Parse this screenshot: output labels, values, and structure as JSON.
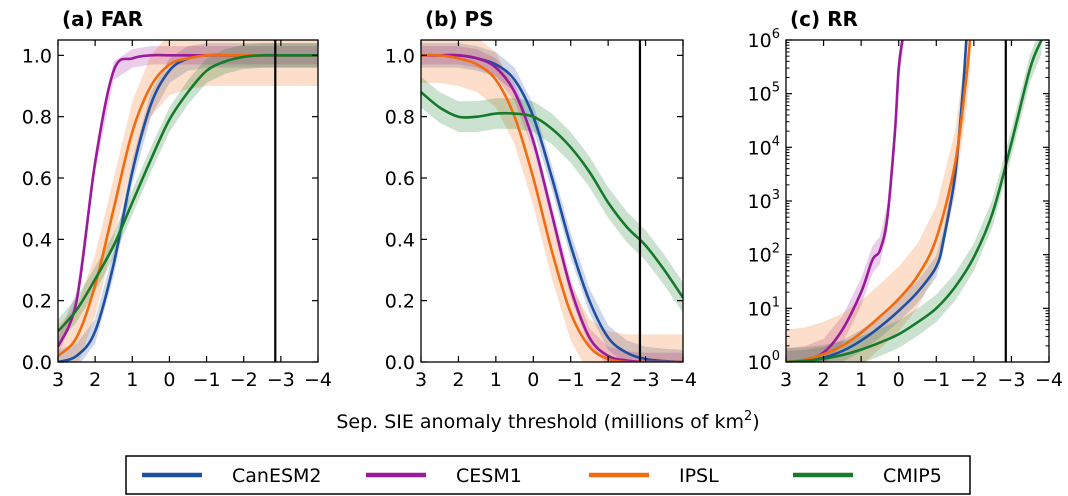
{
  "chart_data": [
    {
      "panel": "a",
      "type": "line",
      "title": "(a) FAR",
      "yscale": "linear",
      "xlim": [
        3,
        -4
      ],
      "ylim": [
        0,
        1.05
      ],
      "xticks": [
        3,
        2,
        1,
        0,
        -1,
        -2,
        -3,
        -4
      ],
      "xtick_labels": [
        "3",
        "2",
        "1",
        "0",
        "−1",
        "−2",
        "−3",
        "−4"
      ],
      "yticks": [
        0,
        0.2,
        0.4,
        0.6,
        0.8,
        1.0
      ],
      "ytick_labels": [
        "0.0",
        "0.2",
        "0.4",
        "0.6",
        "0.8",
        "1.0"
      ],
      "observed_line_x": -2.85,
      "x": [
        3.0,
        2.5,
        2.0,
        1.5,
        1.0,
        0.5,
        0.0,
        -0.5,
        -1.0,
        -1.5,
        -2.0,
        -2.5,
        -3.0,
        -3.5,
        -4.0
      ],
      "series": [
        {
          "name": "CanESM2",
          "color": "#1f4fa0",
          "values": [
            0.0,
            0.02,
            0.1,
            0.32,
            0.62,
            0.84,
            0.95,
            0.99,
            1.0,
            1.0,
            1.0,
            1.0,
            1.0,
            1.0,
            1.0
          ],
          "band": 0.04
        },
        {
          "name": "CESM1",
          "color": "#9b1a9b",
          "values": [
            0.05,
            0.2,
            0.65,
            0.95,
            0.99,
            1.0,
            1.0,
            1.0,
            1.0,
            1.0,
            1.0,
            1.0,
            1.0,
            1.0,
            1.0
          ],
          "band": 0.03
        },
        {
          "name": "IPSL",
          "color": "#f26b0f",
          "values": [
            0.02,
            0.08,
            0.25,
            0.5,
            0.75,
            0.9,
            0.97,
            0.99,
            1.0,
            1.0,
            1.0,
            1.0,
            1.0,
            1.0,
            1.0
          ],
          "band": 0.1
        },
        {
          "name": "CMIP5",
          "color": "#157a2a",
          "values": [
            0.1,
            0.17,
            0.27,
            0.38,
            0.52,
            0.66,
            0.79,
            0.88,
            0.95,
            0.98,
            0.995,
            1.0,
            1.0,
            1.0,
            1.0
          ],
          "band": 0.04
        }
      ]
    },
    {
      "panel": "b",
      "type": "line",
      "title": "(b) PS",
      "yscale": "linear",
      "xlim": [
        3,
        -4
      ],
      "ylim": [
        0,
        1.05
      ],
      "xticks": [
        3,
        2,
        1,
        0,
        -1,
        -2,
        -3,
        -4
      ],
      "xtick_labels": [
        "3",
        "2",
        "1",
        "0",
        "−1",
        "−2",
        "−3",
        "−4"
      ],
      "yticks": [
        0,
        0.2,
        0.4,
        0.6,
        0.8,
        1.0
      ],
      "ytick_labels": [
        "0.0",
        "0.2",
        "0.4",
        "0.6",
        "0.8",
        "1.0"
      ],
      "observed_line_x": -2.85,
      "x": [
        3.0,
        2.5,
        2.0,
        1.5,
        1.0,
        0.5,
        0.0,
        -0.5,
        -1.0,
        -1.5,
        -2.0,
        -2.5,
        -3.0,
        -3.5,
        -4.0
      ],
      "series": [
        {
          "name": "CanESM2",
          "color": "#1f4fa0",
          "values": [
            1.0,
            1.0,
            1.0,
            0.99,
            0.97,
            0.92,
            0.8,
            0.6,
            0.38,
            0.2,
            0.08,
            0.03,
            0.01,
            0.003,
            0.0
          ],
          "band": 0.04
        },
        {
          "name": "CESM1",
          "color": "#9b1a9b",
          "values": [
            1.0,
            1.0,
            1.0,
            0.99,
            0.96,
            0.88,
            0.72,
            0.48,
            0.24,
            0.08,
            0.02,
            0.005,
            0.0,
            0.0,
            0.0
          ],
          "band": 0.03
        },
        {
          "name": "IPSL",
          "color": "#f26b0f",
          "values": [
            1.0,
            1.0,
            0.99,
            0.97,
            0.92,
            0.8,
            0.6,
            0.36,
            0.16,
            0.05,
            0.01,
            0.0,
            0.0,
            0.0,
            0.0
          ],
          "band": 0.09
        },
        {
          "name": "CMIP5",
          "color": "#157a2a",
          "values": [
            0.88,
            0.83,
            0.8,
            0.8,
            0.81,
            0.81,
            0.8,
            0.76,
            0.7,
            0.62,
            0.52,
            0.44,
            0.38,
            0.3,
            0.21
          ],
          "band": 0.05
        }
      ]
    },
    {
      "panel": "c",
      "type": "line",
      "title": "(c) RR",
      "yscale": "log",
      "xlim": [
        3,
        -4
      ],
      "ylim": [
        1,
        1000000
      ],
      "xticks": [
        3,
        2,
        1,
        0,
        -1,
        -2,
        -3,
        -4
      ],
      "xtick_labels": [
        "3",
        "2",
        "1",
        "0",
        "−1",
        "−2",
        "−3",
        "−4"
      ],
      "yticks": [
        1,
        10,
        100,
        1000,
        10000,
        100000,
        1000000
      ],
      "ytick_labels": [
        {
          "base": "10",
          "exp": "0"
        },
        {
          "base": "10",
          "exp": "1"
        },
        {
          "base": "10",
          "exp": "2"
        },
        {
          "base": "10",
          "exp": "3"
        },
        {
          "base": "10",
          "exp": "4"
        },
        {
          "base": "10",
          "exp": "5"
        },
        {
          "base": "10",
          "exp": "6"
        }
      ],
      "observed_line_x": -2.85,
      "series": [
        {
          "name": "CanESM2",
          "color": "#1f4fa0",
          "x": [
            3.0,
            2.5,
            2.0,
            1.5,
            1.0,
            0.5,
            0.0,
            -0.5,
            -1.0,
            -1.2,
            -1.5,
            -1.7,
            -1.8
          ],
          "values": [
            1.0,
            1.05,
            1.2,
            1.6,
            2.5,
            4.5,
            9,
            20,
            60,
            200,
            3000,
            100000,
            1000000
          ],
          "band_factor": 1.6
        },
        {
          "name": "CESM1",
          "color": "#9b1a9b",
          "x": [
            3.0,
            2.5,
            2.0,
            1.5,
            1.0,
            0.7,
            0.5,
            0.3,
            0.1,
            0.0,
            -0.1
          ],
          "values": [
            1.0,
            1.1,
            1.5,
            4,
            20,
            80,
            120,
            500,
            20000,
            300000,
            1000000
          ],
          "band_factor": 1.8
        },
        {
          "name": "IPSL",
          "color": "#f26b0f",
          "x": [
            3.0,
            2.5,
            2.0,
            1.5,
            1.0,
            0.5,
            0.0,
            -0.5,
            -1.0,
            -1.5,
            -1.8,
            -1.9
          ],
          "values": [
            1.0,
            1.1,
            1.4,
            2,
            3.5,
            7,
            15,
            40,
            200,
            5000,
            200000,
            1000000
          ],
          "band_factor": 4
        },
        {
          "name": "CMIP5",
          "color": "#157a2a",
          "x": [
            3.0,
            2.5,
            2.0,
            1.5,
            1.0,
            0.5,
            0.0,
            -0.5,
            -1.0,
            -1.5,
            -2.0,
            -2.5,
            -3.0,
            -3.5,
            -3.8
          ],
          "values": [
            1.0,
            1.05,
            1.15,
            1.35,
            1.7,
            2.3,
            3.3,
            5.5,
            10,
            25,
            90,
            600,
            12000,
            300000,
            1000000
          ],
          "band_factor": 1.8
        }
      ]
    }
  ],
  "xlabel": {
    "text": "Sep. SIE anomaly threshold (millions of km",
    "sup": "2",
    "close": ")"
  },
  "legend": {
    "placement": "bottom",
    "entries": [
      {
        "name": "CanESM2",
        "color": "#1f4fa0"
      },
      {
        "name": "CESM1",
        "color": "#9b1a9b"
      },
      {
        "name": "IPSL",
        "color": "#f26b0f"
      },
      {
        "name": "CMIP5",
        "color": "#157a2a"
      }
    ]
  }
}
